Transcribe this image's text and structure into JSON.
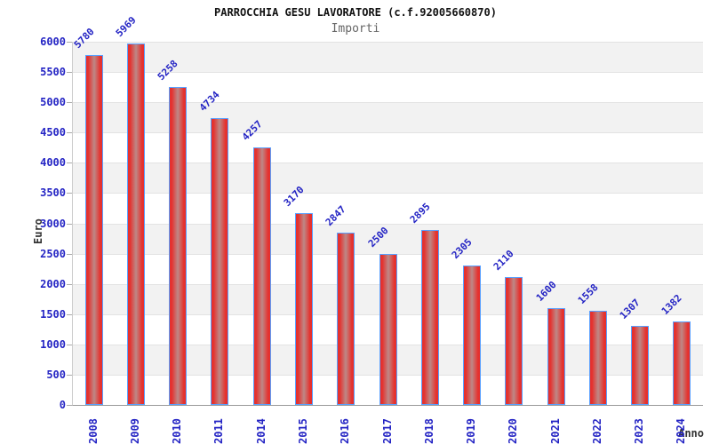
{
  "chart_data": {
    "type": "bar",
    "title": "PARROCCHIA GESU LAVORATORE (c.f.92005660870)",
    "subtitle": "Importi",
    "xlabel": "Anno",
    "ylabel": "Euro",
    "categories": [
      "2008",
      "2009",
      "2010",
      "2011",
      "2014",
      "2015",
      "2016",
      "2017",
      "2018",
      "2019",
      "2020",
      "2021",
      "2022",
      "2023",
      "2024"
    ],
    "values": [
      5780,
      5969,
      5258,
      4734,
      4257,
      3170,
      2847,
      2500,
      2895,
      2305,
      2110,
      1600,
      1558,
      1307,
      1382
    ],
    "ylim": [
      0,
      6000
    ],
    "ytick_step": 500,
    "legend": "none",
    "grid": "horizontal-bands-alternating",
    "colors": {
      "bar_edge_red": "#e5312e",
      "bar_center_sheen": "#bd8886",
      "bar_border_blue": "#59a0ff",
      "tick_label_blue": "#2424c4",
      "band_gray": "#f2f2f2",
      "band_white": "#ffffff",
      "gridline": "#e3e3e3",
      "title_color": "#111111",
      "subtitle_color": "#666666",
      "axis_title_color": "#333333"
    }
  }
}
